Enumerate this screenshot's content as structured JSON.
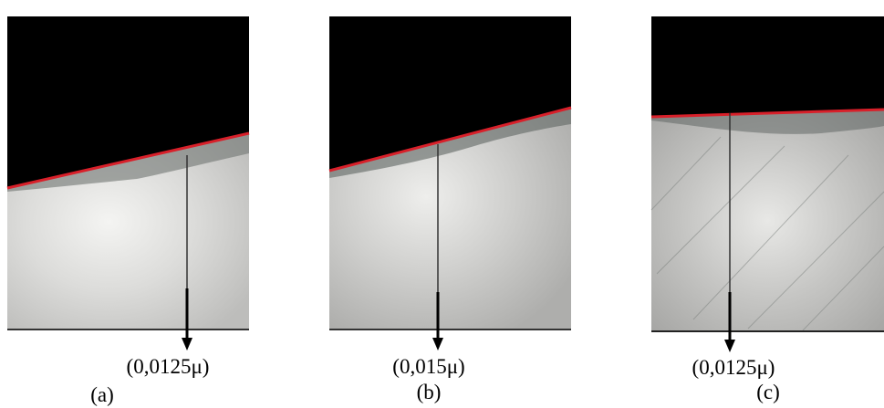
{
  "panels": [
    {
      "annotation": "(0,0125μ)",
      "label": "(a)"
    },
    {
      "annotation": "(0,015μ)",
      "label": "(b)"
    },
    {
      "annotation": "(0,0125μ)",
      "label": "(c)"
    }
  ]
}
